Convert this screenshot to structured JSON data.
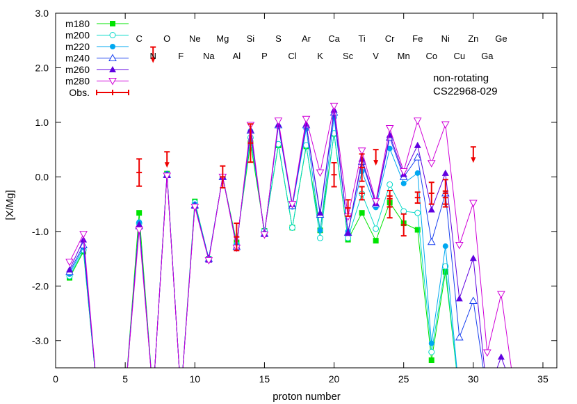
{
  "chart_data": {
    "type": "scatter",
    "xlabel": "proton number",
    "ylabel": "[X/Mg]",
    "xlim": [
      0,
      36
    ],
    "ylim": [
      -3.5,
      3.0
    ],
    "xticks": [
      0,
      5,
      10,
      15,
      20,
      25,
      30,
      35
    ],
    "yticks": [
      -3.0,
      -2.0,
      -1.0,
      0.0,
      1.0,
      2.0,
      3.0
    ],
    "ytick_labels": [
      "-3.0",
      "-2.0",
      "-1.0",
      "0.0",
      "1.0",
      "2.0",
      "3.0"
    ],
    "grid": false,
    "legend_position": "top-left",
    "annotations": [
      "non-rotating",
      "CS22968-029"
    ],
    "element_labels_row1": [
      {
        "z": 6,
        "label": "C"
      },
      {
        "z": 8,
        "label": "O"
      },
      {
        "z": 10,
        "label": "Ne"
      },
      {
        "z": 12,
        "label": "Mg"
      },
      {
        "z": 14,
        "label": "Si"
      },
      {
        "z": 16,
        "label": "S"
      },
      {
        "z": 18,
        "label": "Ar"
      },
      {
        "z": 20,
        "label": "Ca"
      },
      {
        "z": 22,
        "label": "Ti"
      },
      {
        "z": 24,
        "label": "Cr"
      },
      {
        "z": 26,
        "label": "Fe"
      },
      {
        "z": 28,
        "label": "Ni"
      },
      {
        "z": 30,
        "label": "Zn"
      },
      {
        "z": 32,
        "label": "Ge"
      }
    ],
    "element_labels_row2": [
      {
        "z": 7,
        "label": "N"
      },
      {
        "z": 9,
        "label": "F"
      },
      {
        "z": 11,
        "label": "Na"
      },
      {
        "z": 13,
        "label": "Al"
      },
      {
        "z": 15,
        "label": "P"
      },
      {
        "z": 17,
        "label": "Cl"
      },
      {
        "z": 19,
        "label": "K"
      },
      {
        "z": 21,
        "label": "Sc"
      },
      {
        "z": 23,
        "label": "V"
      },
      {
        "z": 25,
        "label": "Mn"
      },
      {
        "z": 27,
        "label": "Co"
      },
      {
        "z": 29,
        "label": "Cu"
      },
      {
        "z": 31,
        "label": "Ga"
      }
    ],
    "series": [
      {
        "name": "m180",
        "color": "#00e400",
        "marker": "square-filled",
        "points": [
          [
            1,
            -1.85
          ],
          [
            2,
            -1.37
          ],
          [
            3,
            -4.0
          ],
          [
            5,
            -4.0
          ],
          [
            6,
            -0.66
          ],
          [
            7,
            -4.0
          ],
          [
            8,
            0.06
          ],
          [
            9,
            -4.0
          ],
          [
            10,
            -0.45
          ],
          [
            11,
            -1.5
          ],
          [
            12,
            0.0
          ],
          [
            13,
            -1.2
          ],
          [
            14,
            0.62
          ],
          [
            15,
            -0.99
          ],
          [
            16,
            0.58
          ],
          [
            17,
            -0.93
          ],
          [
            18,
            0.56
          ],
          [
            19,
            -0.98
          ],
          [
            20,
            0.79
          ],
          [
            21,
            -1.15
          ],
          [
            22,
            -0.66
          ],
          [
            23,
            -1.17
          ],
          [
            24,
            -0.47
          ],
          [
            25,
            -0.85
          ],
          [
            26,
            -0.97
          ],
          [
            27,
            -3.36
          ],
          [
            28,
            -1.74
          ],
          [
            29,
            -4.0
          ]
        ]
      },
      {
        "name": "m200",
        "color": "#00d8c8",
        "marker": "circle-open",
        "points": [
          [
            1,
            -1.82
          ],
          [
            2,
            -1.34
          ],
          [
            3,
            -4.0
          ],
          [
            5,
            -4.0
          ],
          [
            6,
            -0.85
          ],
          [
            7,
            -4.0
          ],
          [
            8,
            0.05
          ],
          [
            9,
            -4.0
          ],
          [
            10,
            -0.47
          ],
          [
            11,
            -1.5
          ],
          [
            12,
            0.0
          ],
          [
            13,
            -1.24
          ],
          [
            14,
            0.72
          ],
          [
            15,
            -0.99
          ],
          [
            16,
            0.6
          ],
          [
            17,
            -0.93
          ],
          [
            18,
            0.58
          ],
          [
            19,
            -1.12
          ],
          [
            20,
            0.8
          ],
          [
            21,
            -1.12
          ],
          [
            22,
            -0.31
          ],
          [
            23,
            -0.95
          ],
          [
            24,
            -0.14
          ],
          [
            25,
            -0.63
          ],
          [
            26,
            -0.66
          ],
          [
            27,
            -3.21
          ],
          [
            28,
            -1.64
          ],
          [
            29,
            -4.0
          ]
        ]
      },
      {
        "name": "m220",
        "color": "#00a8f0",
        "marker": "circle-filled",
        "points": [
          [
            1,
            -1.78
          ],
          [
            2,
            -1.29
          ],
          [
            3,
            -4.0
          ],
          [
            5,
            -4.0
          ],
          [
            6,
            -0.83
          ],
          [
            7,
            -4.0
          ],
          [
            8,
            0.05
          ],
          [
            9,
            -4.0
          ],
          [
            10,
            -0.5
          ],
          [
            11,
            -1.49
          ],
          [
            12,
            0.0
          ],
          [
            13,
            -1.25
          ],
          [
            14,
            0.84
          ],
          [
            15,
            -1.03
          ],
          [
            16,
            0.93
          ],
          [
            17,
            -0.55
          ],
          [
            18,
            0.88
          ],
          [
            19,
            -0.98
          ],
          [
            20,
            1.09
          ],
          [
            21,
            -1.0
          ],
          [
            22,
            0.1
          ],
          [
            23,
            -0.56
          ],
          [
            24,
            0.52
          ],
          [
            25,
            -0.12
          ],
          [
            26,
            0.07
          ],
          [
            27,
            -3.05
          ],
          [
            28,
            -1.27
          ],
          [
            29,
            -4.0
          ]
        ]
      },
      {
        "name": "m240",
        "color": "#1840f0",
        "marker": "triangle-open",
        "points": [
          [
            1,
            -1.74
          ],
          [
            2,
            -1.25
          ],
          [
            3,
            -4.0
          ],
          [
            5,
            -4.0
          ],
          [
            6,
            -0.9
          ],
          [
            7,
            -4.0
          ],
          [
            8,
            0.04
          ],
          [
            9,
            -4.0
          ],
          [
            10,
            -0.52
          ],
          [
            11,
            -1.5
          ],
          [
            12,
            0.0
          ],
          [
            13,
            -1.28
          ],
          [
            14,
            0.85
          ],
          [
            15,
            -1.04
          ],
          [
            16,
            0.95
          ],
          [
            17,
            -0.53
          ],
          [
            18,
            0.95
          ],
          [
            19,
            -0.69
          ],
          [
            20,
            1.18
          ],
          [
            21,
            -1.02
          ],
          [
            22,
            0.28
          ],
          [
            23,
            -0.5
          ],
          [
            24,
            0.72
          ],
          [
            25,
            0.0
          ],
          [
            26,
            0.36
          ],
          [
            27,
            -1.19
          ],
          [
            28,
            -0.3
          ],
          [
            29,
            -2.94
          ],
          [
            30,
            -2.27
          ],
          [
            31,
            -4.0
          ]
        ]
      },
      {
        "name": "m260",
        "color": "#6000e0",
        "marker": "triangle-filled",
        "points": [
          [
            1,
            -1.7
          ],
          [
            2,
            -1.15
          ],
          [
            3,
            -4.0
          ],
          [
            5,
            -4.0
          ],
          [
            6,
            -0.87
          ],
          [
            7,
            -4.0
          ],
          [
            8,
            0.03
          ],
          [
            9,
            -4.0
          ],
          [
            10,
            -0.53
          ],
          [
            11,
            -1.52
          ],
          [
            12,
            0.0
          ],
          [
            13,
            -1.26
          ],
          [
            14,
            0.86
          ],
          [
            15,
            -1.05
          ],
          [
            16,
            0.96
          ],
          [
            17,
            -0.5
          ],
          [
            18,
            0.97
          ],
          [
            19,
            -0.66
          ],
          [
            20,
            1.23
          ],
          [
            21,
            -1.03
          ],
          [
            22,
            0.33
          ],
          [
            23,
            -0.48
          ],
          [
            24,
            0.77
          ],
          [
            25,
            0.05
          ],
          [
            26,
            0.58
          ],
          [
            27,
            -0.6
          ],
          [
            28,
            0.07
          ],
          [
            29,
            -2.23
          ],
          [
            30,
            -1.49
          ],
          [
            31,
            -4.0
          ],
          [
            32,
            -3.3
          ],
          [
            33,
            -4.0
          ]
        ]
      },
      {
        "name": "m280",
        "color": "#d000d8",
        "marker": "triangle-down-open",
        "points": [
          [
            1,
            -1.56
          ],
          [
            2,
            -1.05
          ],
          [
            3,
            -4.0
          ],
          [
            5,
            -4.0
          ],
          [
            6,
            -0.97
          ],
          [
            7,
            -4.0
          ],
          [
            8,
            0.02
          ],
          [
            9,
            -4.0
          ],
          [
            10,
            -0.55
          ],
          [
            11,
            -1.53
          ],
          [
            12,
            0.0
          ],
          [
            13,
            -1.3
          ],
          [
            14,
            0.95
          ],
          [
            15,
            -1.06
          ],
          [
            16,
            1.03
          ],
          [
            17,
            -0.5
          ],
          [
            18,
            1.06
          ],
          [
            19,
            0.08
          ],
          [
            20,
            1.3
          ],
          [
            21,
            -0.73
          ],
          [
            22,
            0.48
          ],
          [
            23,
            -0.45
          ],
          [
            24,
            0.89
          ],
          [
            25,
            0.1
          ],
          [
            26,
            1.03
          ],
          [
            27,
            0.25
          ],
          [
            28,
            0.96
          ],
          [
            29,
            -1.25
          ],
          [
            30,
            -0.48
          ],
          [
            31,
            -3.22
          ],
          [
            32,
            -2.15
          ],
          [
            33,
            -4.0
          ]
        ]
      }
    ],
    "observations": {
      "name": "Obs.",
      "color": "#ee0000",
      "points": [
        {
          "x": 6,
          "y": 0.08,
          "err": 0.25
        },
        {
          "x": 12,
          "y": 0.0,
          "err": 0.2
        },
        {
          "x": 13,
          "y": -1.1,
          "err": 0.25
        },
        {
          "x": 14,
          "y": 0.62,
          "err": 0.35
        },
        {
          "x": 20,
          "y": 0.04,
          "err": 0.22
        },
        {
          "x": 21,
          "y": -0.57,
          "err": 0.15
        },
        {
          "x": 22,
          "y": 0.17,
          "err": 0.25
        },
        {
          "x": 22,
          "y": -0.3,
          "err": 0.12
        },
        {
          "x": 24,
          "y": -0.55,
          "err": 0.2
        },
        {
          "x": 24,
          "y": -0.4,
          "err": 0.15
        },
        {
          "x": 25,
          "y": -0.88,
          "err": 0.2
        },
        {
          "x": 26,
          "y": -0.38,
          "err": 0.1
        },
        {
          "x": 27,
          "y": -0.3,
          "err": 0.2
        },
        {
          "x": 28,
          "y": -0.38,
          "err": 0.12
        },
        {
          "x": 28,
          "y": -0.3,
          "err": 0.25
        }
      ],
      "upper_limits": [
        {
          "x": 7,
          "y": 2.38
        },
        {
          "x": 8,
          "y": 0.46
        },
        {
          "x": 23,
          "y": 0.5
        },
        {
          "x": 30,
          "y": 0.55
        }
      ]
    }
  }
}
